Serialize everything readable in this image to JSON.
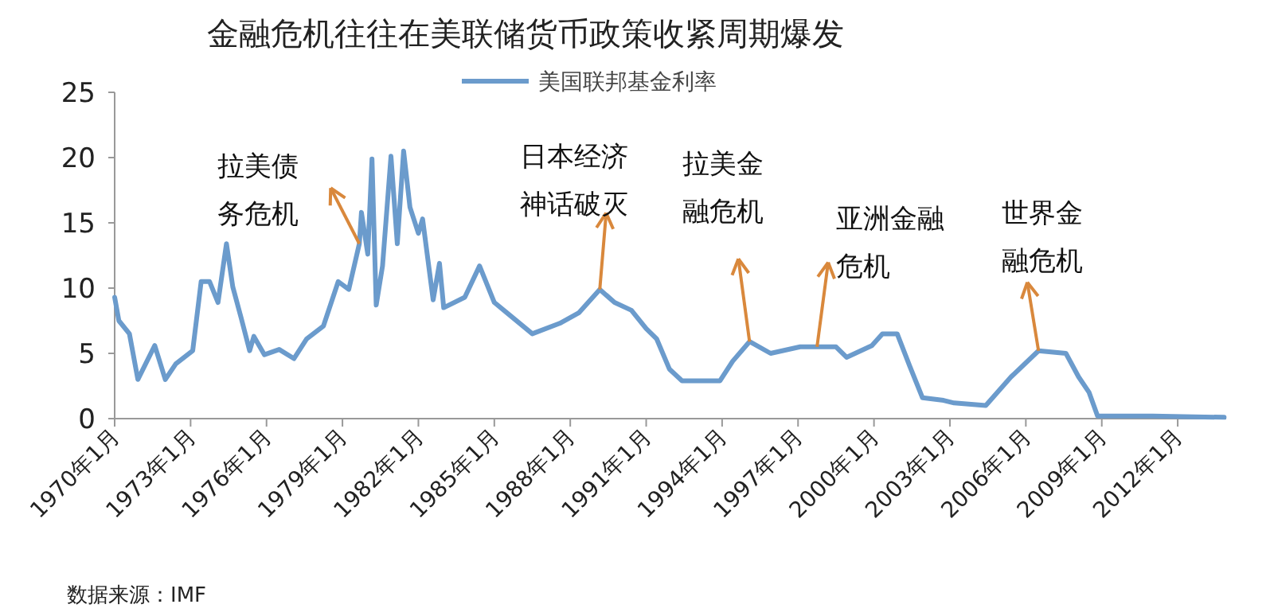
{
  "chart_data": {
    "type": "line",
    "title": "金融危机往往在美联储货币政策收紧周期爆发",
    "series": [
      {
        "name": "美国联邦基金利率",
        "color": "#6b9bcc",
        "x": [
          "1970-01",
          "1970-03",
          "1970-08",
          "1970-12",
          "1971-08",
          "1972-01",
          "1972-06",
          "1973-02",
          "1973-06",
          "1973-10",
          "1974-02",
          "1974-06",
          "1974-09",
          "1975-01",
          "1975-05",
          "1975-07",
          "1975-12",
          "1976-07",
          "1977-02",
          "1977-08",
          "1978-04",
          "1978-11",
          "1979-04",
          "1979-09",
          "1979-10",
          "1980-01",
          "1980-03",
          "1980-05",
          "1980-08",
          "1980-12",
          "1981-03",
          "1981-06",
          "1981-09",
          "1982-01",
          "1982-03",
          "1982-08",
          "1982-11",
          "1983-01",
          "1983-11",
          "1984-06",
          "1985-01",
          "1985-07",
          "1986-07",
          "1987-08",
          "1988-05",
          "1989-03",
          "1989-10",
          "1990-06",
          "1991-01",
          "1991-06",
          "1991-12",
          "1992-06",
          "1993-12",
          "1994-06",
          "1995-02",
          "1995-12",
          "1997-02",
          "1998-07",
          "1998-12",
          "1999-12",
          "2000-05",
          "2000-12",
          "2001-06",
          "2001-12",
          "2002-10",
          "2003-03",
          "2004-06",
          "2005-06",
          "2006-07",
          "2007-08",
          "2008-02",
          "2008-07",
          "2008-11",
          "2011-01",
          "2013-11"
        ],
        "values": [
          9.3,
          7.5,
          6.5,
          3.0,
          5.6,
          3.0,
          4.2,
          5.2,
          10.5,
          10.5,
          8.9,
          13.4,
          10.1,
          7.7,
          5.2,
          6.3,
          4.9,
          5.3,
          4.6,
          6.1,
          7.1,
          10.5,
          9.9,
          13.4,
          15.8,
          12.6,
          19.9,
          8.7,
          11.7,
          20.1,
          13.4,
          20.5,
          16.2,
          14.2,
          15.3,
          9.1,
          11.9,
          8.5,
          9.3,
          11.7,
          8.9,
          8.1,
          6.5,
          7.3,
          8.1,
          9.9,
          8.9,
          8.3,
          6.9,
          6.1,
          3.8,
          2.9,
          2.9,
          4.4,
          5.9,
          5.0,
          5.5,
          5.5,
          4.7,
          5.6,
          6.5,
          6.5,
          4.0,
          1.6,
          1.4,
          1.2,
          1.0,
          3.2,
          5.2,
          5.0,
          3.2,
          2.0,
          0.2,
          0.2,
          0.1
        ]
      }
    ],
    "xlim": [
      "1970-01",
      "2013-12"
    ],
    "xticks": [
      {
        "value": "1970-01",
        "label": "1970年1月"
      },
      {
        "value": "1973-01",
        "label": "1973年1月"
      },
      {
        "value": "1976-01",
        "label": "1976年1月"
      },
      {
        "value": "1979-01",
        "label": "1979年1月"
      },
      {
        "value": "1982-01",
        "label": "1982年1月"
      },
      {
        "value": "1985-01",
        "label": "1985年1月"
      },
      {
        "value": "1988-01",
        "label": "1988年1月"
      },
      {
        "value": "1991-01",
        "label": "1991年1月"
      },
      {
        "value": "1994-01",
        "label": "1994年1月"
      },
      {
        "value": "1997-01",
        "label": "1997年1月"
      },
      {
        "value": "2000-01",
        "label": "2000年1月"
      },
      {
        "value": "2003-01",
        "label": "2003年1月"
      },
      {
        "value": "2006-01",
        "label": "2006年1月"
      },
      {
        "value": "2009-01",
        "label": "2009年1月"
      },
      {
        "value": "2012-01",
        "label": "2012年1月"
      }
    ],
    "ylim": [
      0,
      25
    ],
    "yticks": [
      0,
      5,
      10,
      15,
      20,
      25
    ],
    "grid": false,
    "legend": "top",
    "annotations": [
      {
        "text": "拉美债务危机",
        "x": "1979-09",
        "y": 13.4
      },
      {
        "text": "日本经济神话破灭",
        "x": "1989-03",
        "y": 9.9
      },
      {
        "text": "拉美金融危机",
        "x": "1995-02",
        "y": 5.9
      },
      {
        "text": "亚洲金融危机",
        "x": "1997-10",
        "y": 5.5
      },
      {
        "text": "世界金融危机",
        "x": "2006-07",
        "y": 5.2
      },
      "数据来源：IMF"
    ]
  }
}
